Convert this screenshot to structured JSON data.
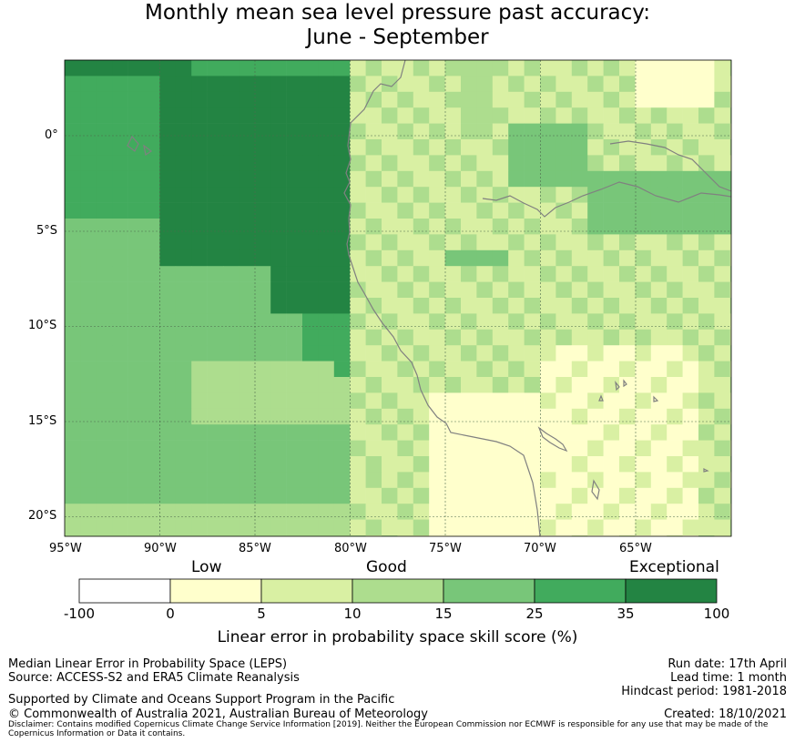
{
  "title_line1": "Monthly mean sea level pressure past accuracy:",
  "title_line2": "June - September",
  "map": {
    "lon_range": [
      -95,
      -60
    ],
    "lat_range": [
      -21,
      4
    ],
    "lon_ticks": [
      "95°W",
      "90°W",
      "85°W",
      "80°W",
      "75°W",
      "70°W",
      "65°W"
    ],
    "lat_ticks": [
      "0°",
      "5°S",
      "10°S",
      "15°S",
      "20°S"
    ],
    "gridlines": true,
    "coastline_color": "#808080"
  },
  "colorbar": {
    "categories": [
      "Low",
      "Good",
      "Exceptional"
    ],
    "bounds": [
      "-100",
      "0",
      "5",
      "10",
      "15",
      "25",
      "35",
      "100"
    ],
    "colors": [
      "#ffffff",
      "#ffffcc",
      "#d9f0a3",
      "#addd8e",
      "#78c679",
      "#41ab5d",
      "#238443"
    ],
    "label": "Linear error in probability space skill score (%)"
  },
  "footer": {
    "metric": "Median Linear Error in Probability Space (LEPS)",
    "source": "Source: ACCESS-S2 and ERA5 Climate Reanalysis",
    "support": "Supported by Climate and Oceans Support Program in the Pacific",
    "copyright": "© Commonwealth of Australia 2021, Australian Bureau of Meteorology",
    "disclaimer1": "Disclaimer: Contains modified Copernicus Climate Change Service Information [2019]. Neither the European Commission nor ECMWF is responsible for any use that may be made of the",
    "disclaimer2": "Copernicus Information or Data it contains.",
    "run_date": "Run date: 17th April",
    "lead_time": "Lead time: 1 month",
    "hindcast": "Hindcast period: 1981-2018",
    "created": "Created: 18/10/2021"
  }
}
